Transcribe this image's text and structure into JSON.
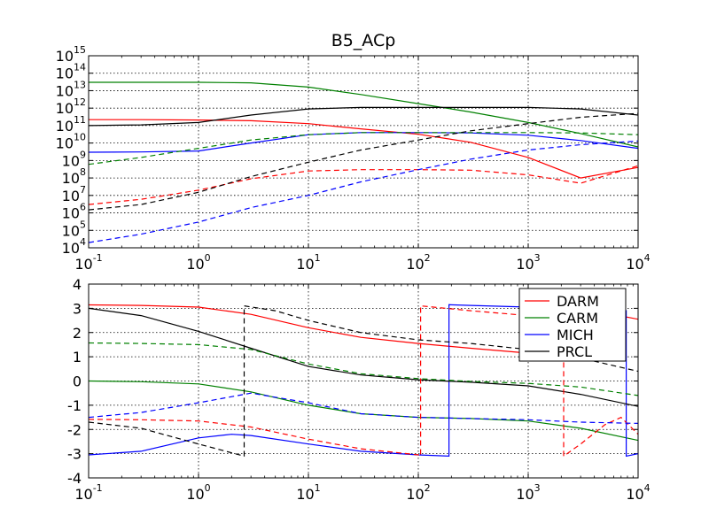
{
  "chart_data": [
    {
      "type": "line",
      "title": "B5_ACp",
      "xscale": "log",
      "yscale": "log",
      "xlim": [
        0.1,
        10000
      ],
      "ylim": [
        10000,
        1000000000000000
      ],
      "grid": true,
      "x_tick_labels": [
        {
          "base": "10",
          "exp": "-1"
        },
        {
          "base": "10",
          "exp": "0"
        },
        {
          "base": "10",
          "exp": "1"
        },
        {
          "base": "10",
          "exp": "2"
        },
        {
          "base": "10",
          "exp": "3"
        },
        {
          "base": "10",
          "exp": "4"
        }
      ],
      "y_tick_labels": [
        {
          "base": "10",
          "exp": "4"
        },
        {
          "base": "10",
          "exp": "5"
        },
        {
          "base": "10",
          "exp": "6"
        },
        {
          "base": "10",
          "exp": "7"
        },
        {
          "base": "10",
          "exp": "8"
        },
        {
          "base": "10",
          "exp": "9"
        },
        {
          "base": "10",
          "exp": "10"
        },
        {
          "base": "10",
          "exp": "11"
        },
        {
          "base": "10",
          "exp": "12"
        },
        {
          "base": "10",
          "exp": "13"
        },
        {
          "base": "10",
          "exp": "14"
        },
        {
          "base": "10",
          "exp": "15"
        }
      ],
      "x": [
        0.1,
        0.3,
        1,
        3,
        10,
        30,
        100,
        300,
        1000,
        3000,
        10000
      ],
      "series": [
        {
          "name": "DARM",
          "color": "#ff0000",
          "style": "solid",
          "values": [
            220000000000.0,
            220000000000.0,
            210000000000.0,
            190000000000.0,
            130000000000.0,
            65000000000.0,
            32000000000.0,
            11000000000.0,
            1500000000.0,
            100000000.0,
            400000000.0
          ]
        },
        {
          "name": "CARM",
          "color": "#008000",
          "style": "solid",
          "values": [
            30000000000000.0,
            30000000000000.0,
            30000000000000.0,
            28000000000000.0,
            16000000000000.0,
            6000000000000.0,
            1800000000000.0,
            600000000000.0,
            150000000000.0,
            35000000000.0,
            6000000000.0
          ]
        },
        {
          "name": "MICH",
          "color": "#0000ff",
          "style": "solid",
          "values": [
            3000000000.0,
            3100000000.0,
            3500000000.0,
            10000000000.0,
            30000000000.0,
            40000000000.0,
            40000000000.0,
            38000000000.0,
            28000000000.0,
            14000000000.0,
            5000000000.0
          ]
        },
        {
          "name": "PRCL",
          "color": "#000000",
          "style": "solid",
          "values": [
            100000000000.0,
            110000000000.0,
            150000000000.0,
            400000000000.0,
            900000000000.0,
            1100000000000.0,
            1100000000000.0,
            1100000000000.0,
            1100000000000.0,
            900000000000.0,
            400000000000.0
          ]
        },
        {
          "name": "DARM",
          "color": "#ff0000",
          "style": "dashed",
          "values": [
            3000000.0,
            6000000.0,
            20000000.0,
            90000000.0,
            250000000.0,
            300000000.0,
            300000000.0,
            280000000.0,
            150000000.0,
            50000000.0,
            500000000.0
          ]
        },
        {
          "name": "CARM",
          "color": "#008000",
          "style": "dashed",
          "values": [
            600000000.0,
            1500000000.0,
            5000000000.0,
            15000000000.0,
            30000000000.0,
            40000000000.0,
            40000000000.0,
            40000000000.0,
            40000000000.0,
            38000000000.0,
            30000000000.0
          ]
        },
        {
          "name": "MICH",
          "color": "#0000ff",
          "style": "dashed",
          "values": [
            20000.0,
            60000.0,
            300000.0,
            2000000.0,
            10000000.0,
            60000000.0,
            300000000.0,
            1200000000.0,
            4000000000.0,
            8000000000.0,
            13000000000.0
          ]
        },
        {
          "name": "PRCL",
          "color": "#000000",
          "style": "dashed",
          "values": [
            1500000.0,
            3000000.0,
            15000000.0,
            120000000.0,
            800000000.0,
            4000000000.0,
            15000000000.0,
            50000000000.0,
            130000000000.0,
            300000000000.0,
            500000000000.0
          ]
        }
      ]
    },
    {
      "type": "line",
      "xscale": "log",
      "xlim": [
        0.1,
        10000
      ],
      "ylim": [
        -4,
        4
      ],
      "grid": true,
      "legend_position": "top-right",
      "legend": [
        "DARM",
        "CARM",
        "MICH",
        "PRCL"
      ],
      "x_tick_labels": [
        {
          "base": "10",
          "exp": "-1"
        },
        {
          "base": "10",
          "exp": "0"
        },
        {
          "base": "10",
          "exp": "1"
        },
        {
          "base": "10",
          "exp": "2"
        },
        {
          "base": "10",
          "exp": "3"
        },
        {
          "base": "10",
          "exp": "4"
        }
      ],
      "y_tick_labels": [
        "-4",
        "-3",
        "-2",
        "-1",
        "0",
        "1",
        "2",
        "3",
        "4"
      ],
      "series": [
        {
          "name": "DARM",
          "color": "#ff0000",
          "style": "solid",
          "points": [
            [
              0.1,
              3.14
            ],
            [
              0.3,
              3.12
            ],
            [
              1,
              3.05
            ],
            [
              3,
              2.75
            ],
            [
              10,
              2.2
            ],
            [
              30,
              1.8
            ],
            [
              100,
              1.55
            ],
            [
              300,
              1.35
            ],
            [
              1000,
              1.15
            ],
            [
              3000,
              1.05
            ],
            [
              3000,
              3.0
            ],
            [
              10000,
              2.55
            ]
          ]
        },
        {
          "name": "CARM",
          "color": "#008000",
          "style": "solid",
          "points": [
            [
              0.1,
              0.0
            ],
            [
              0.3,
              -0.03
            ],
            [
              1,
              -0.12
            ],
            [
              3,
              -0.45
            ],
            [
              10,
              -1.0
            ],
            [
              30,
              -1.35
            ],
            [
              100,
              -1.5
            ],
            [
              300,
              -1.55
            ],
            [
              1000,
              -1.65
            ],
            [
              3000,
              -1.95
            ],
            [
              10000,
              -2.45
            ]
          ]
        },
        {
          "name": "MICH",
          "color": "#0000ff",
          "style": "solid",
          "points": [
            [
              0.1,
              -3.05
            ],
            [
              0.3,
              -2.9
            ],
            [
              1,
              -2.35
            ],
            [
              2,
              -2.2
            ],
            [
              3,
              -2.25
            ],
            [
              10,
              -2.6
            ],
            [
              30,
              -2.9
            ],
            [
              100,
              -3.05
            ],
            [
              190,
              -3.1
            ],
            [
              190,
              3.15
            ],
            [
              300,
              3.12
            ],
            [
              1000,
              3.05
            ],
            [
              3000,
              2.95
            ],
            [
              7800,
              2.9
            ],
            [
              7800,
              -3.1
            ],
            [
              10000,
              -3.0
            ]
          ]
        },
        {
          "name": "PRCL",
          "color": "#000000",
          "style": "solid",
          "points": [
            [
              0.1,
              3.0
            ],
            [
              0.3,
              2.7
            ],
            [
              1,
              2.05
            ],
            [
              3,
              1.35
            ],
            [
              10,
              0.6
            ],
            [
              30,
              0.25
            ],
            [
              100,
              0.05
            ],
            [
              300,
              -0.05
            ],
            [
              1000,
              -0.2
            ],
            [
              3000,
              -0.55
            ],
            [
              10000,
              -1.05
            ]
          ]
        },
        {
          "name": "DARM",
          "color": "#ff0000",
          "style": "dashed",
          "points": [
            [
              0.1,
              -1.58
            ],
            [
              0.3,
              -1.6
            ],
            [
              1,
              -1.65
            ],
            [
              3,
              -1.9
            ],
            [
              10,
              -2.4
            ],
            [
              30,
              -2.8
            ],
            [
              100,
              -3.05
            ],
            [
              105,
              -3.1
            ],
            [
              105,
              3.1
            ],
            [
              300,
              2.9
            ],
            [
              1000,
              2.7
            ],
            [
              2100,
              2.6
            ],
            [
              2100,
              -3.1
            ],
            [
              3000,
              -2.6
            ],
            [
              5000,
              -1.8
            ],
            [
              7000,
              -1.5
            ],
            [
              10000,
              -2.2
            ]
          ]
        },
        {
          "name": "CARM",
          "color": "#008000",
          "style": "dashed",
          "points": [
            [
              0.1,
              1.57
            ],
            [
              0.3,
              1.55
            ],
            [
              1,
              1.5
            ],
            [
              3,
              1.3
            ],
            [
              10,
              0.7
            ],
            [
              30,
              0.3
            ],
            [
              100,
              0.1
            ],
            [
              300,
              -0.02
            ],
            [
              1000,
              -0.1
            ],
            [
              3000,
              -0.25
            ],
            [
              10000,
              -0.6
            ]
          ]
        },
        {
          "name": "MICH",
          "color": "#0000ff",
          "style": "dashed",
          "points": [
            [
              0.1,
              -1.5
            ],
            [
              0.3,
              -1.3
            ],
            [
              1,
              -0.9
            ],
            [
              3,
              -0.5
            ],
            [
              10,
              -0.9
            ],
            [
              30,
              -1.35
            ],
            [
              100,
              -1.5
            ],
            [
              300,
              -1.55
            ],
            [
              1000,
              -1.6
            ],
            [
              3000,
              -1.7
            ],
            [
              10000,
              -1.75
            ]
          ]
        },
        {
          "name": "PRCL",
          "color": "#000000",
          "style": "dashed",
          "points": [
            [
              0.1,
              -1.7
            ],
            [
              0.3,
              -1.95
            ],
            [
              1,
              -2.6
            ],
            [
              2.6,
              -3.1
            ],
            [
              2.6,
              3.1
            ],
            [
              5,
              2.9
            ],
            [
              10,
              2.5
            ],
            [
              30,
              2.0
            ],
            [
              100,
              1.7
            ],
            [
              300,
              1.55
            ],
            [
              1000,
              1.3
            ],
            [
              3000,
              0.95
            ],
            [
              10000,
              0.4
            ]
          ]
        }
      ]
    }
  ]
}
